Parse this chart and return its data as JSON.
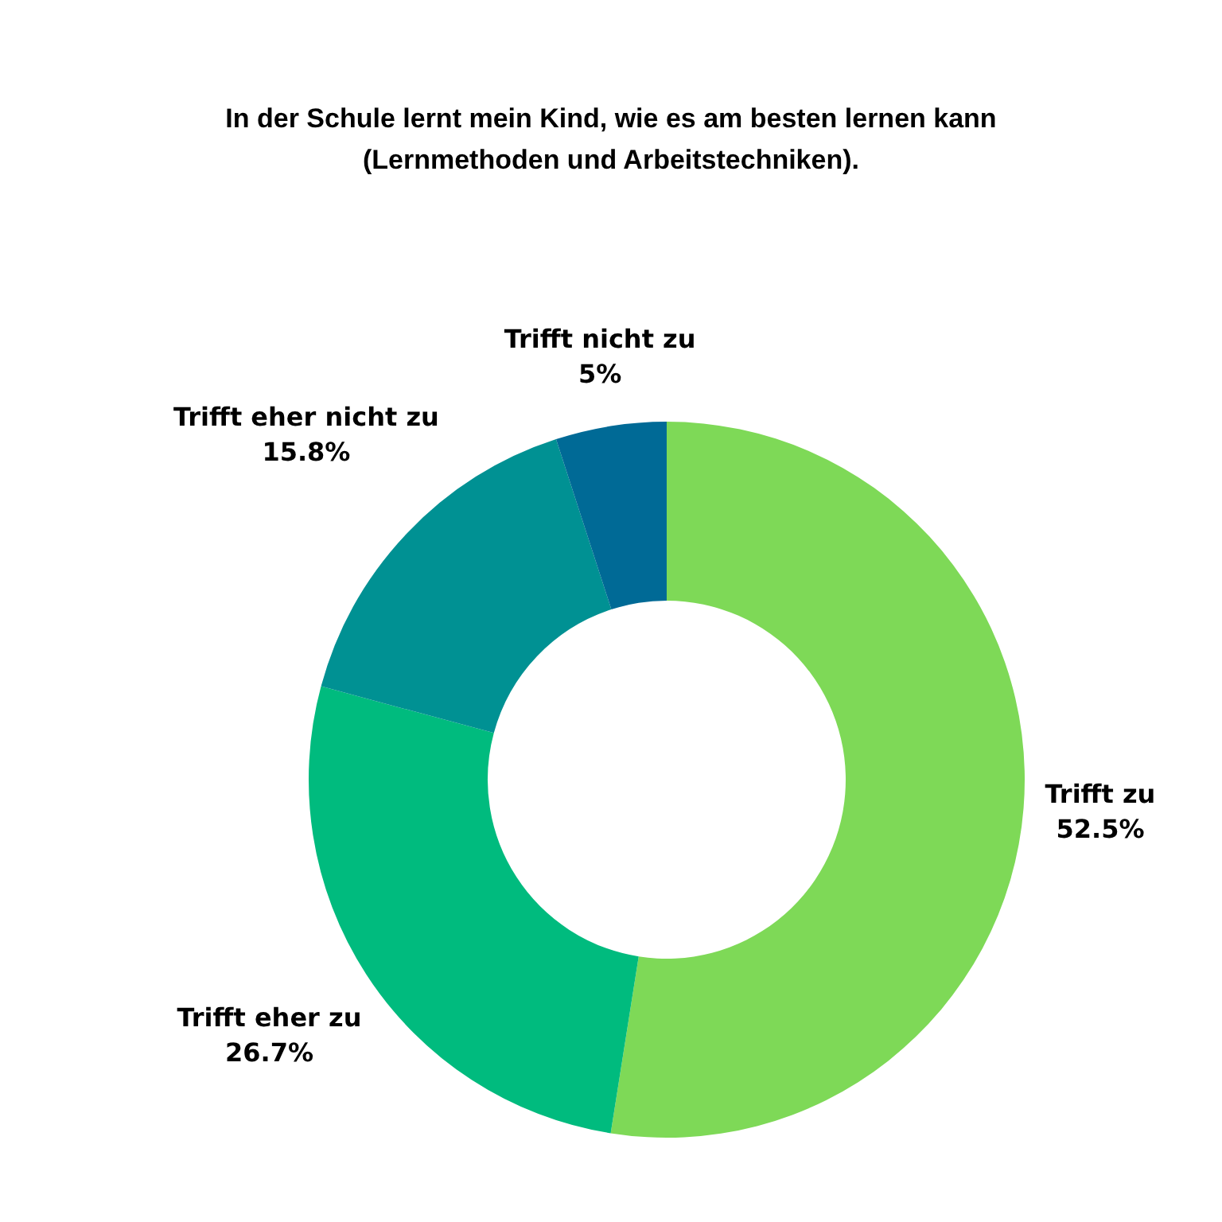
{
  "chart_data": {
    "type": "donut",
    "title": "In der Schule lernt mein Kind, wie es am besten lernen kann (Lernmethoden und Arbeitstechniken).",
    "categories": [
      "Trifft zu",
      "Trifft eher zu",
      "Trifft eher nicht zu",
      "Trifft nicht zu"
    ],
    "values": [
      52.5,
      26.7,
      15.8,
      5
    ],
    "value_labels": [
      "52.5%",
      "26.7%",
      "15.8%",
      "5%"
    ],
    "colors": [
      "#7ed957",
      "#00bb7e",
      "#009193",
      "#006a96"
    ],
    "legend": false
  }
}
